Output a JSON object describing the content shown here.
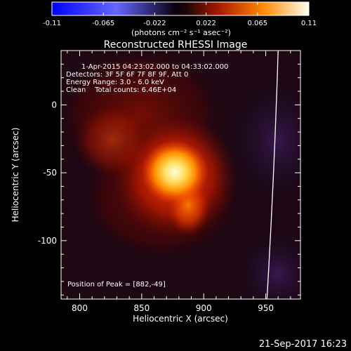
{
  "colorbar": {
    "ticks": [
      "-0.11",
      "-0.065",
      "-0.022",
      "0.022",
      "0.065",
      "0.11"
    ],
    "unit_label": "(photons cm⁻² s⁻¹ asec⁻²)",
    "min": -0.11,
    "max": 0.11
  },
  "annotations": {
    "time_range": "1-Apr-2015 04:23:02.000 to 04:33:02.000",
    "detectors": "Detectors: 3F 5F 6F 7F 8F 9F, Att 0",
    "energy": "Energy Range: 3.0 - 6.0 keV",
    "clean": "Clean    Total counts: 6.46E+04",
    "peak": "Position of Peak = [882,-49]"
  },
  "footer": {
    "timestamp": "21-Sep-2017 16:23"
  },
  "chart_data": {
    "type": "heatmap",
    "title": "Reconstructed RHESSI Image",
    "xlabel": "Heliocentric X (arcsec)",
    "ylabel": "Heliocentric Y (arcsec)",
    "xlim": [
      785,
      978
    ],
    "ylim": [
      -143,
      40
    ],
    "x_ticks": [
      {
        "value": 800,
        "label": "800"
      },
      {
        "value": 850,
        "label": "850"
      },
      {
        "value": 900,
        "label": "900"
      },
      {
        "value": 950,
        "label": "950"
      }
    ],
    "y_ticks": [
      {
        "value": 0,
        "label": "0"
      },
      {
        "value": -50,
        "label": "-50"
      },
      {
        "value": -100,
        "label": "-100"
      }
    ],
    "peak": {
      "x": 882,
      "y": -49
    },
    "limb_points": [
      [
        960,
        40
      ],
      [
        957,
        -50
      ],
      [
        951,
        -143
      ]
    ]
  }
}
